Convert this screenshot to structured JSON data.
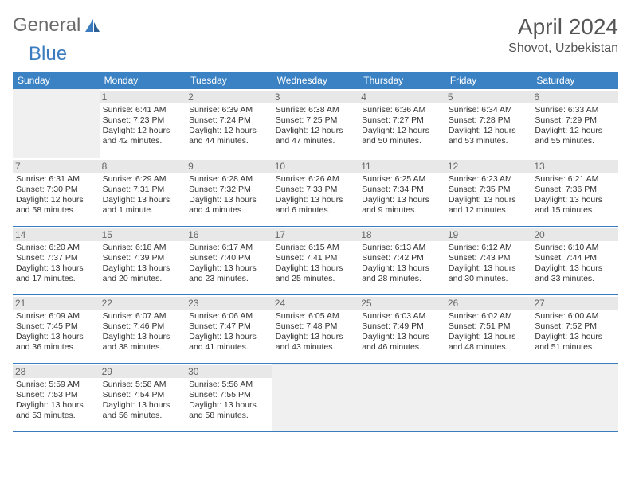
{
  "logo": {
    "text1": "General",
    "text2": "Blue",
    "icon_color": "#3b7bbf"
  },
  "title": "April 2024",
  "location": "Shovot, Uzbekistan",
  "colors": {
    "header_bg": "#3b82c4",
    "header_fg": "#ffffff",
    "border": "#3b7bbf",
    "daynum_bg": "#e8e8e8",
    "empty_bg": "#f0f0f0",
    "text": "#333333"
  },
  "typography": {
    "title_fontsize": 28,
    "location_fontsize": 16,
    "th_fontsize": 12,
    "cell_fontsize": 10.5
  },
  "layout": {
    "cols": 7,
    "rows": 5,
    "start_col": 1
  },
  "weekdays": [
    "Sunday",
    "Monday",
    "Tuesday",
    "Wednesday",
    "Thursday",
    "Friday",
    "Saturday"
  ],
  "days": [
    {
      "n": 1,
      "sr": "6:41 AM",
      "ss": "7:23 PM",
      "dl": "12 hours and 42 minutes."
    },
    {
      "n": 2,
      "sr": "6:39 AM",
      "ss": "7:24 PM",
      "dl": "12 hours and 44 minutes."
    },
    {
      "n": 3,
      "sr": "6:38 AM",
      "ss": "7:25 PM",
      "dl": "12 hours and 47 minutes."
    },
    {
      "n": 4,
      "sr": "6:36 AM",
      "ss": "7:27 PM",
      "dl": "12 hours and 50 minutes."
    },
    {
      "n": 5,
      "sr": "6:34 AM",
      "ss": "7:28 PM",
      "dl": "12 hours and 53 minutes."
    },
    {
      "n": 6,
      "sr": "6:33 AM",
      "ss": "7:29 PM",
      "dl": "12 hours and 55 minutes."
    },
    {
      "n": 7,
      "sr": "6:31 AM",
      "ss": "7:30 PM",
      "dl": "12 hours and 58 minutes."
    },
    {
      "n": 8,
      "sr": "6:29 AM",
      "ss": "7:31 PM",
      "dl": "13 hours and 1 minute."
    },
    {
      "n": 9,
      "sr": "6:28 AM",
      "ss": "7:32 PM",
      "dl": "13 hours and 4 minutes."
    },
    {
      "n": 10,
      "sr": "6:26 AM",
      "ss": "7:33 PM",
      "dl": "13 hours and 6 minutes."
    },
    {
      "n": 11,
      "sr": "6:25 AM",
      "ss": "7:34 PM",
      "dl": "13 hours and 9 minutes."
    },
    {
      "n": 12,
      "sr": "6:23 AM",
      "ss": "7:35 PM",
      "dl": "13 hours and 12 minutes."
    },
    {
      "n": 13,
      "sr": "6:21 AM",
      "ss": "7:36 PM",
      "dl": "13 hours and 15 minutes."
    },
    {
      "n": 14,
      "sr": "6:20 AM",
      "ss": "7:37 PM",
      "dl": "13 hours and 17 minutes."
    },
    {
      "n": 15,
      "sr": "6:18 AM",
      "ss": "7:39 PM",
      "dl": "13 hours and 20 minutes."
    },
    {
      "n": 16,
      "sr": "6:17 AM",
      "ss": "7:40 PM",
      "dl": "13 hours and 23 minutes."
    },
    {
      "n": 17,
      "sr": "6:15 AM",
      "ss": "7:41 PM",
      "dl": "13 hours and 25 minutes."
    },
    {
      "n": 18,
      "sr": "6:13 AM",
      "ss": "7:42 PM",
      "dl": "13 hours and 28 minutes."
    },
    {
      "n": 19,
      "sr": "6:12 AM",
      "ss": "7:43 PM",
      "dl": "13 hours and 30 minutes."
    },
    {
      "n": 20,
      "sr": "6:10 AM",
      "ss": "7:44 PM",
      "dl": "13 hours and 33 minutes."
    },
    {
      "n": 21,
      "sr": "6:09 AM",
      "ss": "7:45 PM",
      "dl": "13 hours and 36 minutes."
    },
    {
      "n": 22,
      "sr": "6:07 AM",
      "ss": "7:46 PM",
      "dl": "13 hours and 38 minutes."
    },
    {
      "n": 23,
      "sr": "6:06 AM",
      "ss": "7:47 PM",
      "dl": "13 hours and 41 minutes."
    },
    {
      "n": 24,
      "sr": "6:05 AM",
      "ss": "7:48 PM",
      "dl": "13 hours and 43 minutes."
    },
    {
      "n": 25,
      "sr": "6:03 AM",
      "ss": "7:49 PM",
      "dl": "13 hours and 46 minutes."
    },
    {
      "n": 26,
      "sr": "6:02 AM",
      "ss": "7:51 PM",
      "dl": "13 hours and 48 minutes."
    },
    {
      "n": 27,
      "sr": "6:00 AM",
      "ss": "7:52 PM",
      "dl": "13 hours and 51 minutes."
    },
    {
      "n": 28,
      "sr": "5:59 AM",
      "ss": "7:53 PM",
      "dl": "13 hours and 53 minutes."
    },
    {
      "n": 29,
      "sr": "5:58 AM",
      "ss": "7:54 PM",
      "dl": "13 hours and 56 minutes."
    },
    {
      "n": 30,
      "sr": "5:56 AM",
      "ss": "7:55 PM",
      "dl": "13 hours and 58 minutes."
    }
  ],
  "labels": {
    "sunrise": "Sunrise:",
    "sunset": "Sunset:",
    "daylight": "Daylight:"
  }
}
